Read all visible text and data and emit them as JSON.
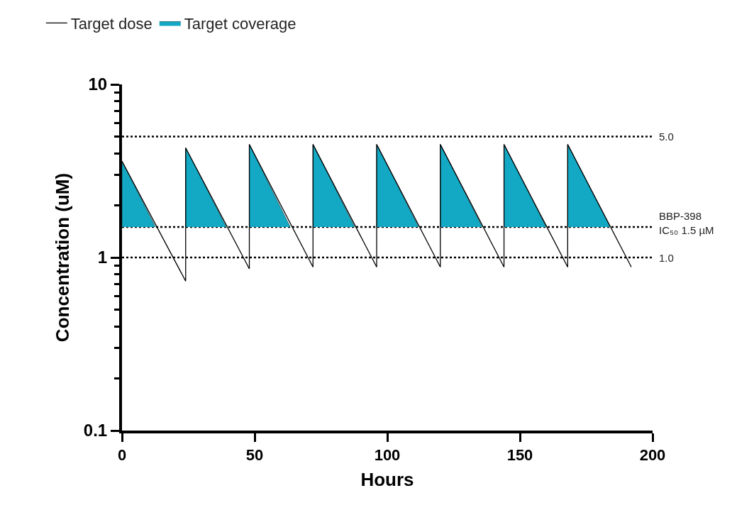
{
  "chart_data": {
    "type": "line",
    "xlabel": "Hours",
    "ylabel": "Concentration (uM)",
    "xlim": [
      0,
      200
    ],
    "xticks": [
      0,
      50,
      100,
      150,
      200
    ],
    "ylim": [
      0.1,
      10
    ],
    "log": "y",
    "yticks": [
      0.1,
      {
        "value": 0.2,
        "label": null
      },
      {
        "value": 0.3,
        "label": null
      },
      {
        "value": 0.4,
        "label": null
      },
      {
        "value": 0.5,
        "label": null
      },
      {
        "value": 0.6,
        "label": null
      },
      {
        "value": 0.7,
        "label": null
      },
      {
        "value": 0.8,
        "label": null
      },
      {
        "value": 0.9,
        "label": null
      },
      1,
      {
        "value": 2,
        "label": null
      },
      {
        "value": 3,
        "label": null
      },
      {
        "value": 4,
        "label": null
      },
      {
        "value": 5,
        "label": null
      },
      {
        "value": 6,
        "label": null
      },
      {
        "value": 7,
        "label": null
      },
      {
        "value": 8,
        "label": null
      },
      {
        "value": 9,
        "label": null
      },
      10
    ],
    "grid": false,
    "legend": "top left",
    "marker": "none",
    "line_style": "solid",
    "series": [
      {
        "name": "Target dose",
        "color": "#000000",
        "x": [
          0,
          24,
          24,
          48,
          48,
          72,
          72,
          96,
          96,
          120,
          120,
          144,
          144,
          168,
          168,
          192
        ],
        "values": [
          3.6,
          0.73,
          4.3,
          0.86,
          4.5,
          0.88,
          4.5,
          0.88,
          4.5,
          0.88,
          4.5,
          0.88,
          4.5,
          0.88,
          4.5,
          0.88
        ]
      },
      {
        "name": "Target coverage",
        "type": "area",
        "color": "#13a9c4",
        "x": [
          0,
          0,
          12.6,
          null,
          24,
          24,
          39.3,
          null,
          48,
          48,
          63.4,
          null,
          72,
          72,
          87.7,
          null,
          96,
          96,
          111.8,
          null,
          120,
          120,
          135.8,
          null,
          144,
          144,
          159.9,
          null,
          168,
          168,
          184
        ],
        "values": [
          1.5,
          3.6,
          1.5,
          null,
          1.5,
          4.3,
          1.5,
          null,
          1.5,
          4.5,
          1.5,
          null,
          1.5,
          4.5,
          1.5,
          null,
          1.5,
          4.5,
          1.5,
          null,
          1.5,
          4.5,
          1.5,
          null,
          1.5,
          4.5,
          1.5,
          null,
          1.5,
          4.5,
          1.5
        ]
      }
    ],
    "ref_lines": [
      {
        "axis": "y",
        "value": 5,
        "label": "5.0",
        "line_style": "dotted",
        "color": "#000000"
      },
      {
        "axis": "y",
        "value": 1.5,
        "label": "BBP-398\nIC₅₀ 1.5 µM",
        "line_style": "dotted",
        "color": "#000000"
      },
      {
        "axis": "y",
        "value": 1,
        "label": "1.0",
        "line_style": "dotted",
        "color": "#000000"
      }
    ]
  }
}
